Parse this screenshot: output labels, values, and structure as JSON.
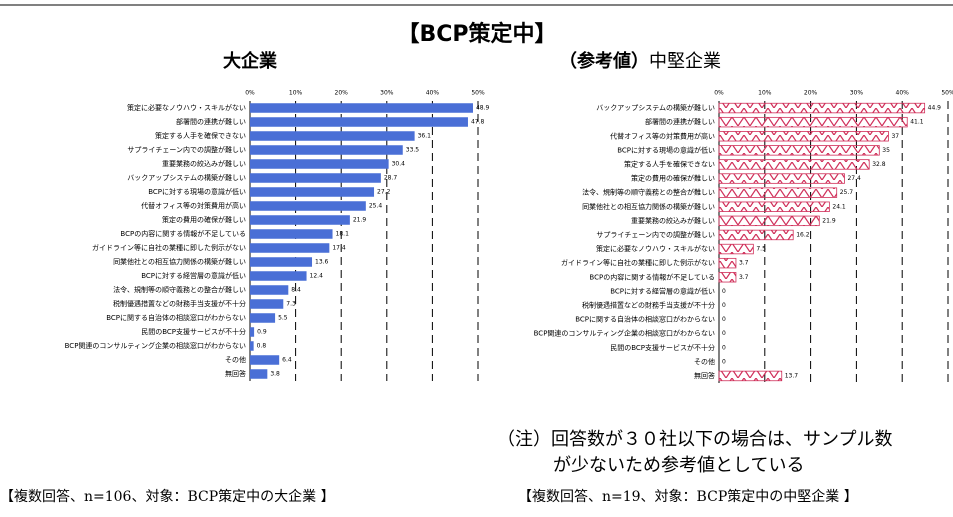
{
  "title": "【BCP策定中】",
  "note": [
    "（注）回答数が３０社以下の場合は、サンプル数",
    "が少ないため参考値としている"
  ],
  "footers": [
    "【複数回答、n=106、対象：BCP策定中の大企業 】",
    "【複数回答、n=19、対象：BCP策定中の中堅企業 】"
  ],
  "chart_data": [
    {
      "type": "bar",
      "orientation": "horizontal",
      "title": "大企業",
      "color": "#4a6fd6",
      "pattern": "solid",
      "categories": [
        "策定に必要なノウハウ・スキルがない",
        "部署間の連携が難しい",
        "策定する人手を確保できない",
        "サプライチェーン内での調整が難しい",
        "重要業務の絞込みが難しい",
        "バックアップシステムの構築が難しい",
        "BCPに対する現場の意識が低い",
        "代替オフィス等の対策費用が高い",
        "策定の費用の確保が難しい",
        "BCPの内容に関する情報が不足している",
        "ガイドライン等に自社の業種に即した例示がない",
        "同業他社との相互協力関係の構築が難しい",
        "BCPに対する経営層の意識が低い",
        "法令、規制等の順守義務との整合が難しい",
        "税制優遇措置などの財務手当支援が不十分",
        "BCPに関する自治体の相談窓口がわからない",
        "民間のBCP支援サービスが不十分",
        "BCP関連のコンサルティング企業の相談窓口がわからない",
        "その他",
        "無回答"
      ],
      "values": [
        48.9,
        47.8,
        36.1,
        33.5,
        30.4,
        28.7,
        27.2,
        25.4,
        21.9,
        18.1,
        17.4,
        13.6,
        12.4,
        8.4,
        7.3,
        5.5,
        0.9,
        0.8,
        6.4,
        3.8
      ],
      "xlim": [
        0,
        50
      ],
      "xticks": [
        {
          "value": 0,
          "label": "0%"
        },
        {
          "value": 10,
          "label": "10%"
        },
        {
          "value": 20,
          "label": "20%"
        },
        {
          "value": 30,
          "label": "30%"
        },
        {
          "value": 40,
          "label": "40%"
        },
        {
          "value": 50,
          "label": "50%"
        }
      ],
      "grid": true
    },
    {
      "type": "bar",
      "orientation": "horizontal",
      "title_prefix": "（参考値）",
      "title": "中堅企業",
      "color": "#d0305a",
      "pattern": "zigzag",
      "categories": [
        "バックアップシステムの構築が難しい",
        "部署間の連携が難しい",
        "代替オフィス等の対策費用が高い",
        "BCPに対する現場の意識が低い",
        "策定する人手を確保できない",
        "策定の費用の確保が難しい",
        "法令、規制等の順守義務との整合が難しい",
        "同業他社との相互協力関係の構築が難しい",
        "重要業務の絞込みが難しい",
        "サプライチェーン内での調整が難しい",
        "策定に必要なノウハウ・スキルがない",
        "ガイドライン等に自社の業種に即した例示がない",
        "BCPの内容に関する情報が不足している",
        "BCPに対する経営層の意識が低い",
        "税制優遇措置などの財務手当支援が不十分",
        "BCPに関する自治体の相談窓口がわからない",
        "BCP関連のコンサルティング企業の相談窓口がわからない",
        "民間のBCP支援サービスが不十分",
        "その他",
        "無回答"
      ],
      "values": [
        44.9,
        41.1,
        37,
        35,
        32.8,
        27.4,
        25.7,
        24.1,
        21.9,
        16.2,
        7.5,
        3.7,
        3.7,
        0,
        0,
        0,
        0,
        0,
        0,
        13.7
      ],
      "xlim": [
        0,
        50
      ],
      "xticks": [
        {
          "value": 0,
          "label": "0%"
        },
        {
          "value": 10,
          "label": "10%"
        },
        {
          "value": 20,
          "label": "20%"
        },
        {
          "value": 30,
          "label": "30%"
        },
        {
          "value": 40,
          "label": "40%"
        },
        {
          "value": 50,
          "label": "50%"
        }
      ],
      "grid": true
    }
  ]
}
